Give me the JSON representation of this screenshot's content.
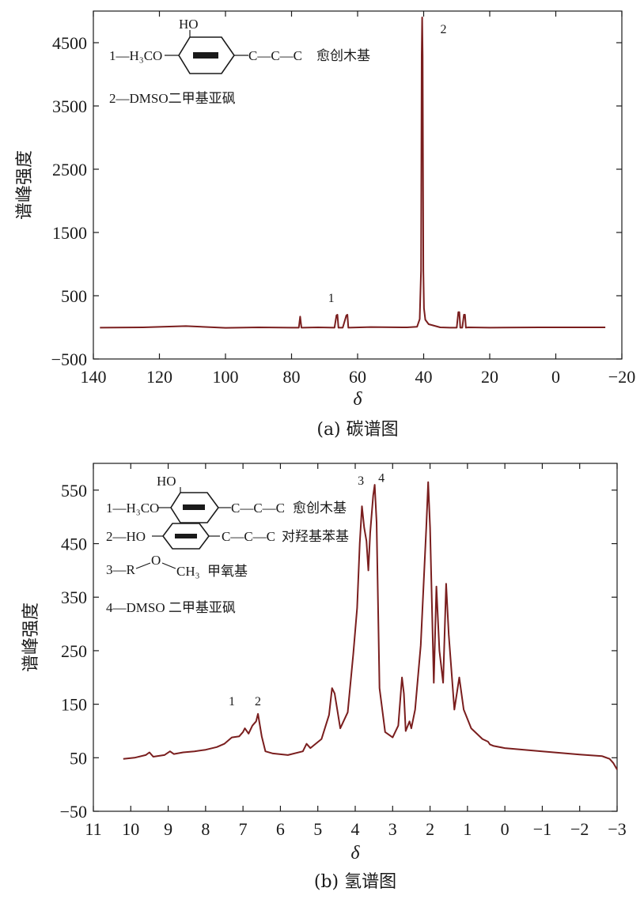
{
  "chart_data": [
    {
      "type": "line",
      "caption": "(a) 碳谱图",
      "xlabel": "δ",
      "ylabel": "谱峰强度",
      "xlim": [
        140,
        -20
      ],
      "ylim": [
        -500,
        5000
      ],
      "x_reversed": true,
      "xticks": [
        140,
        120,
        100,
        80,
        60,
        40,
        20,
        0,
        -20
      ],
      "xtick_labels": [
        "140",
        "120",
        "100",
        "80",
        "60",
        "40",
        "20",
        "0",
        "−20"
      ],
      "yticks": [
        -500,
        500,
        1500,
        2500,
        3500,
        4500
      ],
      "ytick_labels": [
        "−500",
        "500",
        "1500",
        "2500",
        "3500",
        "4500"
      ],
      "line_color": "#7a1e1e",
      "series": [
        {
          "x": [
            138,
            125,
            112,
            100,
            90,
            80,
            77.8,
            77.4,
            77.0,
            76.6,
            72,
            67,
            66.4,
            66.1,
            65.8,
            64.5,
            63.4,
            63.1,
            62.8,
            56,
            45,
            42,
            41.2,
            40.8,
            40.6,
            40.45,
            40.3,
            40.1,
            39.9,
            39.5,
            38.5,
            35,
            32,
            30,
            29.5,
            29.2,
            28.9,
            28.3,
            27.8,
            27.5,
            27.2,
            26.5,
            20,
            5,
            -10,
            -15
          ],
          "y": [
            -5,
            0,
            20,
            -8,
            0,
            -5,
            -5,
            170,
            -5,
            -5,
            0,
            -5,
            190,
            200,
            -5,
            -5,
            190,
            200,
            -5,
            5,
            0,
            10,
            130,
            900,
            4300,
            4900,
            4300,
            900,
            300,
            120,
            50,
            0,
            -5,
            -5,
            240,
            240,
            -5,
            -5,
            200,
            200,
            -5,
            0,
            -5,
            0,
            0,
            0
          ]
        }
      ],
      "annotations": [
        {
          "text": "1",
          "x": 68,
          "y": 400
        },
        {
          "text": "2",
          "x": 34,
          "y": 4650
        }
      ],
      "legend": {
        "entries": [
          {
            "label": "1—H₃CO",
            "substituent": "HO",
            "chain": "C—C—C",
            "name": "愈创木基"
          },
          {
            "label": "2—DMSO二甲基亚砜"
          }
        ]
      }
    },
    {
      "type": "line",
      "caption": "(b) 氢谱图",
      "xlabel": "δ",
      "ylabel": "谱峰强度",
      "xlim": [
        11,
        -3
      ],
      "ylim": [
        -50,
        600
      ],
      "x_reversed": true,
      "xticks": [
        11,
        10,
        9,
        8,
        7,
        6,
        5,
        4,
        3,
        2,
        1,
        0,
        -1,
        -2,
        -3
      ],
      "xtick_labels": [
        "11",
        "10",
        "9",
        "8",
        "7",
        "6",
        "5",
        "4",
        "3",
        "2",
        "1",
        "0",
        "−1",
        "−2",
        "−3"
      ],
      "yticks": [
        -50,
        50,
        150,
        250,
        350,
        450,
        550
      ],
      "ytick_labels": [
        "−50",
        "50",
        "150",
        "250",
        "350",
        "450",
        "550"
      ],
      "line_color": "#7a1e1e",
      "series": [
        {
          "x": [
            10.2,
            9.9,
            9.6,
            9.5,
            9.4,
            9.1,
            8.95,
            8.85,
            8.6,
            8.3,
            8.0,
            7.7,
            7.5,
            7.3,
            7.1,
            7.0,
            6.95,
            6.85,
            6.75,
            6.65,
            6.6,
            6.5,
            6.4,
            6.2,
            5.8,
            5.4,
            5.3,
            5.2,
            4.9,
            4.7,
            4.62,
            4.55,
            4.4,
            4.2,
            4.05,
            3.95,
            3.88,
            3.82,
            3.76,
            3.7,
            3.65,
            3.6,
            3.52,
            3.48,
            3.43,
            3.35,
            3.2,
            3.0,
            2.85,
            2.75,
            2.7,
            2.65,
            2.55,
            2.5,
            2.4,
            2.25,
            2.1,
            2.05,
            2.0,
            1.9,
            1.83,
            1.75,
            1.65,
            1.57,
            1.5,
            1.35,
            1.22,
            1.1,
            0.9,
            0.6,
            0.45,
            0.4,
            0.3,
            0,
            -1,
            -2,
            -2.6,
            -2.8,
            -2.9,
            -3
          ],
          "y": [
            48,
            50,
            55,
            60,
            52,
            55,
            62,
            57,
            60,
            62,
            65,
            70,
            76,
            88,
            90,
            98,
            105,
            95,
            110,
            118,
            132,
            90,
            62,
            58,
            55,
            62,
            76,
            68,
            85,
            130,
            180,
            170,
            105,
            135,
            245,
            330,
            450,
            520,
            480,
            455,
            400,
            470,
            540,
            560,
            490,
            180,
            98,
            88,
            110,
            200,
            170,
            100,
            118,
            105,
            140,
            260,
            480,
            565,
            480,
            190,
            370,
            250,
            190,
            375,
            280,
            140,
            200,
            140,
            105,
            85,
            80,
            75,
            72,
            68,
            62,
            56,
            53,
            48,
            40,
            28
          ]
        }
      ],
      "annotations": [
        {
          "text": "1",
          "x": 7.3,
          "y": 148
        },
        {
          "text": "2",
          "x": 6.6,
          "y": 148
        },
        {
          "text": "3",
          "x": 3.85,
          "y": 560
        },
        {
          "text": "4",
          "x": 3.3,
          "y": 565
        }
      ],
      "legend": {
        "entries": [
          {
            "label": "1—H₃CO",
            "substituent": "HO",
            "chain": "C—C—C",
            "name": "愈创木基"
          },
          {
            "label": "2—HO",
            "chain": "C—C—C",
            "name": "对羟基苯基"
          },
          {
            "label": "3—R",
            "substituent": "O",
            "chain": "CH₃",
            "name": "甲氧基"
          },
          {
            "label": "4—DMSO 二甲基亚砜"
          }
        ]
      }
    }
  ]
}
